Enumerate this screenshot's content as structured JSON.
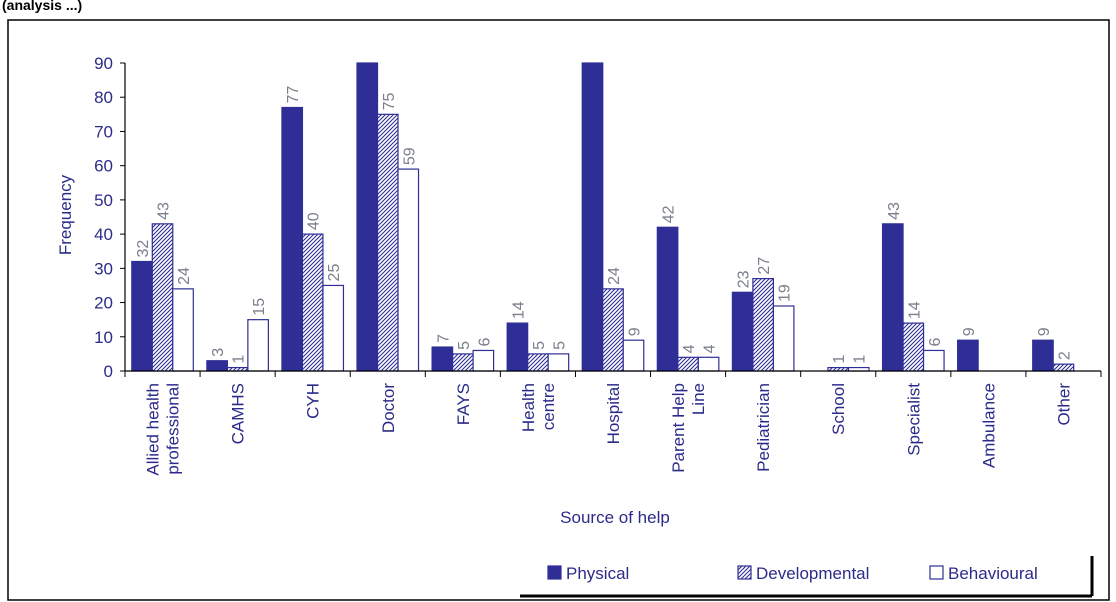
{
  "header_text": "(analysis ...)",
  "chart_data": {
    "type": "bar",
    "categories": [
      "Allied health professional",
      "CAMHS",
      "CYH",
      "Doctor",
      "FAYS",
      "Health centre",
      "Hospital",
      "Parent Help Line",
      "Pediatrician",
      "School",
      "Specialist",
      "Ambulance",
      "Other"
    ],
    "category_lines": [
      [
        "Allied health",
        "professional"
      ],
      [
        "CAMHS"
      ],
      [
        "CYH"
      ],
      [
        "Doctor"
      ],
      [
        "FAYS"
      ],
      [
        "Health",
        "centre"
      ],
      [
        "Hospital"
      ],
      [
        "Parent Help",
        "Line"
      ],
      [
        "Pediatrician"
      ],
      [
        "School"
      ],
      [
        "Specialist"
      ],
      [
        "Ambulance"
      ],
      [
        "Other"
      ]
    ],
    "series": [
      {
        "name": "Physical",
        "values": [
          32,
          3,
          77,
          92,
          7,
          14,
          92,
          42,
          23,
          0,
          43,
          9,
          9
        ],
        "labels": [
          "32",
          "3",
          "77",
          "",
          "7",
          "14",
          "",
          "42",
          "23",
          "",
          "43",
          "9",
          "9"
        ]
      },
      {
        "name": "Developmental",
        "values": [
          43,
          1,
          40,
          75,
          5,
          5,
          24,
          4,
          27,
          1,
          14,
          0,
          2
        ],
        "labels": [
          "43",
          "1",
          "40",
          "75",
          "5",
          "5",
          "24",
          "4",
          "27",
          "1",
          "14",
          "",
          "2"
        ]
      },
      {
        "name": "Behavioural",
        "values": [
          24,
          15,
          25,
          59,
          6,
          5,
          9,
          4,
          19,
          1,
          6,
          0,
          0
        ],
        "labels": [
          "24",
          "15",
          "25",
          "59",
          "6",
          "5",
          "9",
          "4",
          "19",
          "1",
          "6",
          "",
          ""
        ]
      }
    ],
    "xlabel": "Source of help",
    "ylabel": "Frequency",
    "ylim": [
      0,
      90
    ],
    "yticks": [
      0,
      10,
      20,
      30,
      40,
      50,
      60,
      70,
      80,
      90
    ],
    "legend_position": "bottom-right",
    "grid": false,
    "colors": {
      "physical": "#2e2e96",
      "developmental_hatch": "#2e2e96",
      "behavioural_fill": "#ffffff",
      "text": "#2b2b8a",
      "label": "#7a7f8c"
    }
  }
}
